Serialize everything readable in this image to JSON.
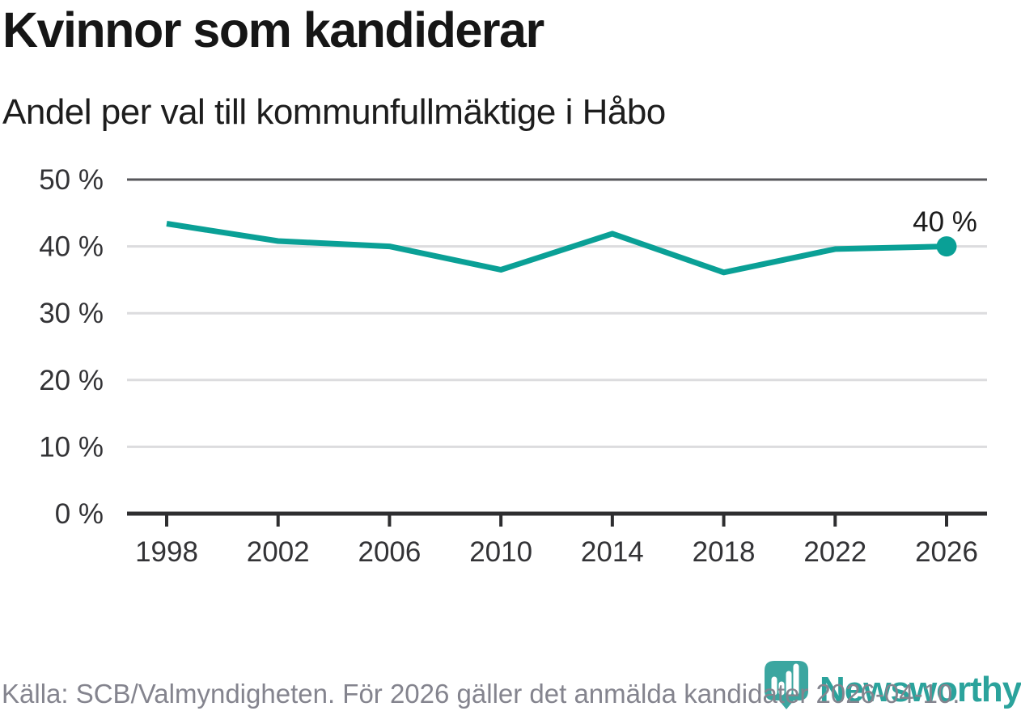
{
  "header": {
    "title": "Kvinnor som kandiderar",
    "subtitle": "Andel per val till kommunfullmäktige i Håbo"
  },
  "chart_data": {
    "type": "line",
    "title": "Kvinnor som kandiderar",
    "subtitle": "Andel per val till kommunfullmäktige i Håbo",
    "x": [
      1998,
      2002,
      2006,
      2010,
      2014,
      2018,
      2022,
      2026
    ],
    "values": [
      43.4,
      40.8,
      40.0,
      36.5,
      41.9,
      36.1,
      39.6,
      40.0
    ],
    "unit": "%",
    "ylim": [
      0,
      50
    ],
    "yticks": [
      "0 %",
      "10 %",
      "20 %",
      "30 %",
      "40 %",
      "50 %"
    ],
    "xticks": [
      "1998",
      "2002",
      "2006",
      "2010",
      "2014",
      "2018",
      "2022",
      "2026"
    ],
    "end_label": "40 %",
    "line_color": "#0aa096",
    "grid": "horizontal",
    "legend": "none"
  },
  "footer": {
    "source": "Källa: SCB/Valmyndigheten. För 2026 gäller det anmälda kandidater 2026-04-10.",
    "logo_text": "Newsworthy"
  },
  "colors": {
    "accent_teal": "#0aa096",
    "logo_teal": "#2ba39c"
  }
}
